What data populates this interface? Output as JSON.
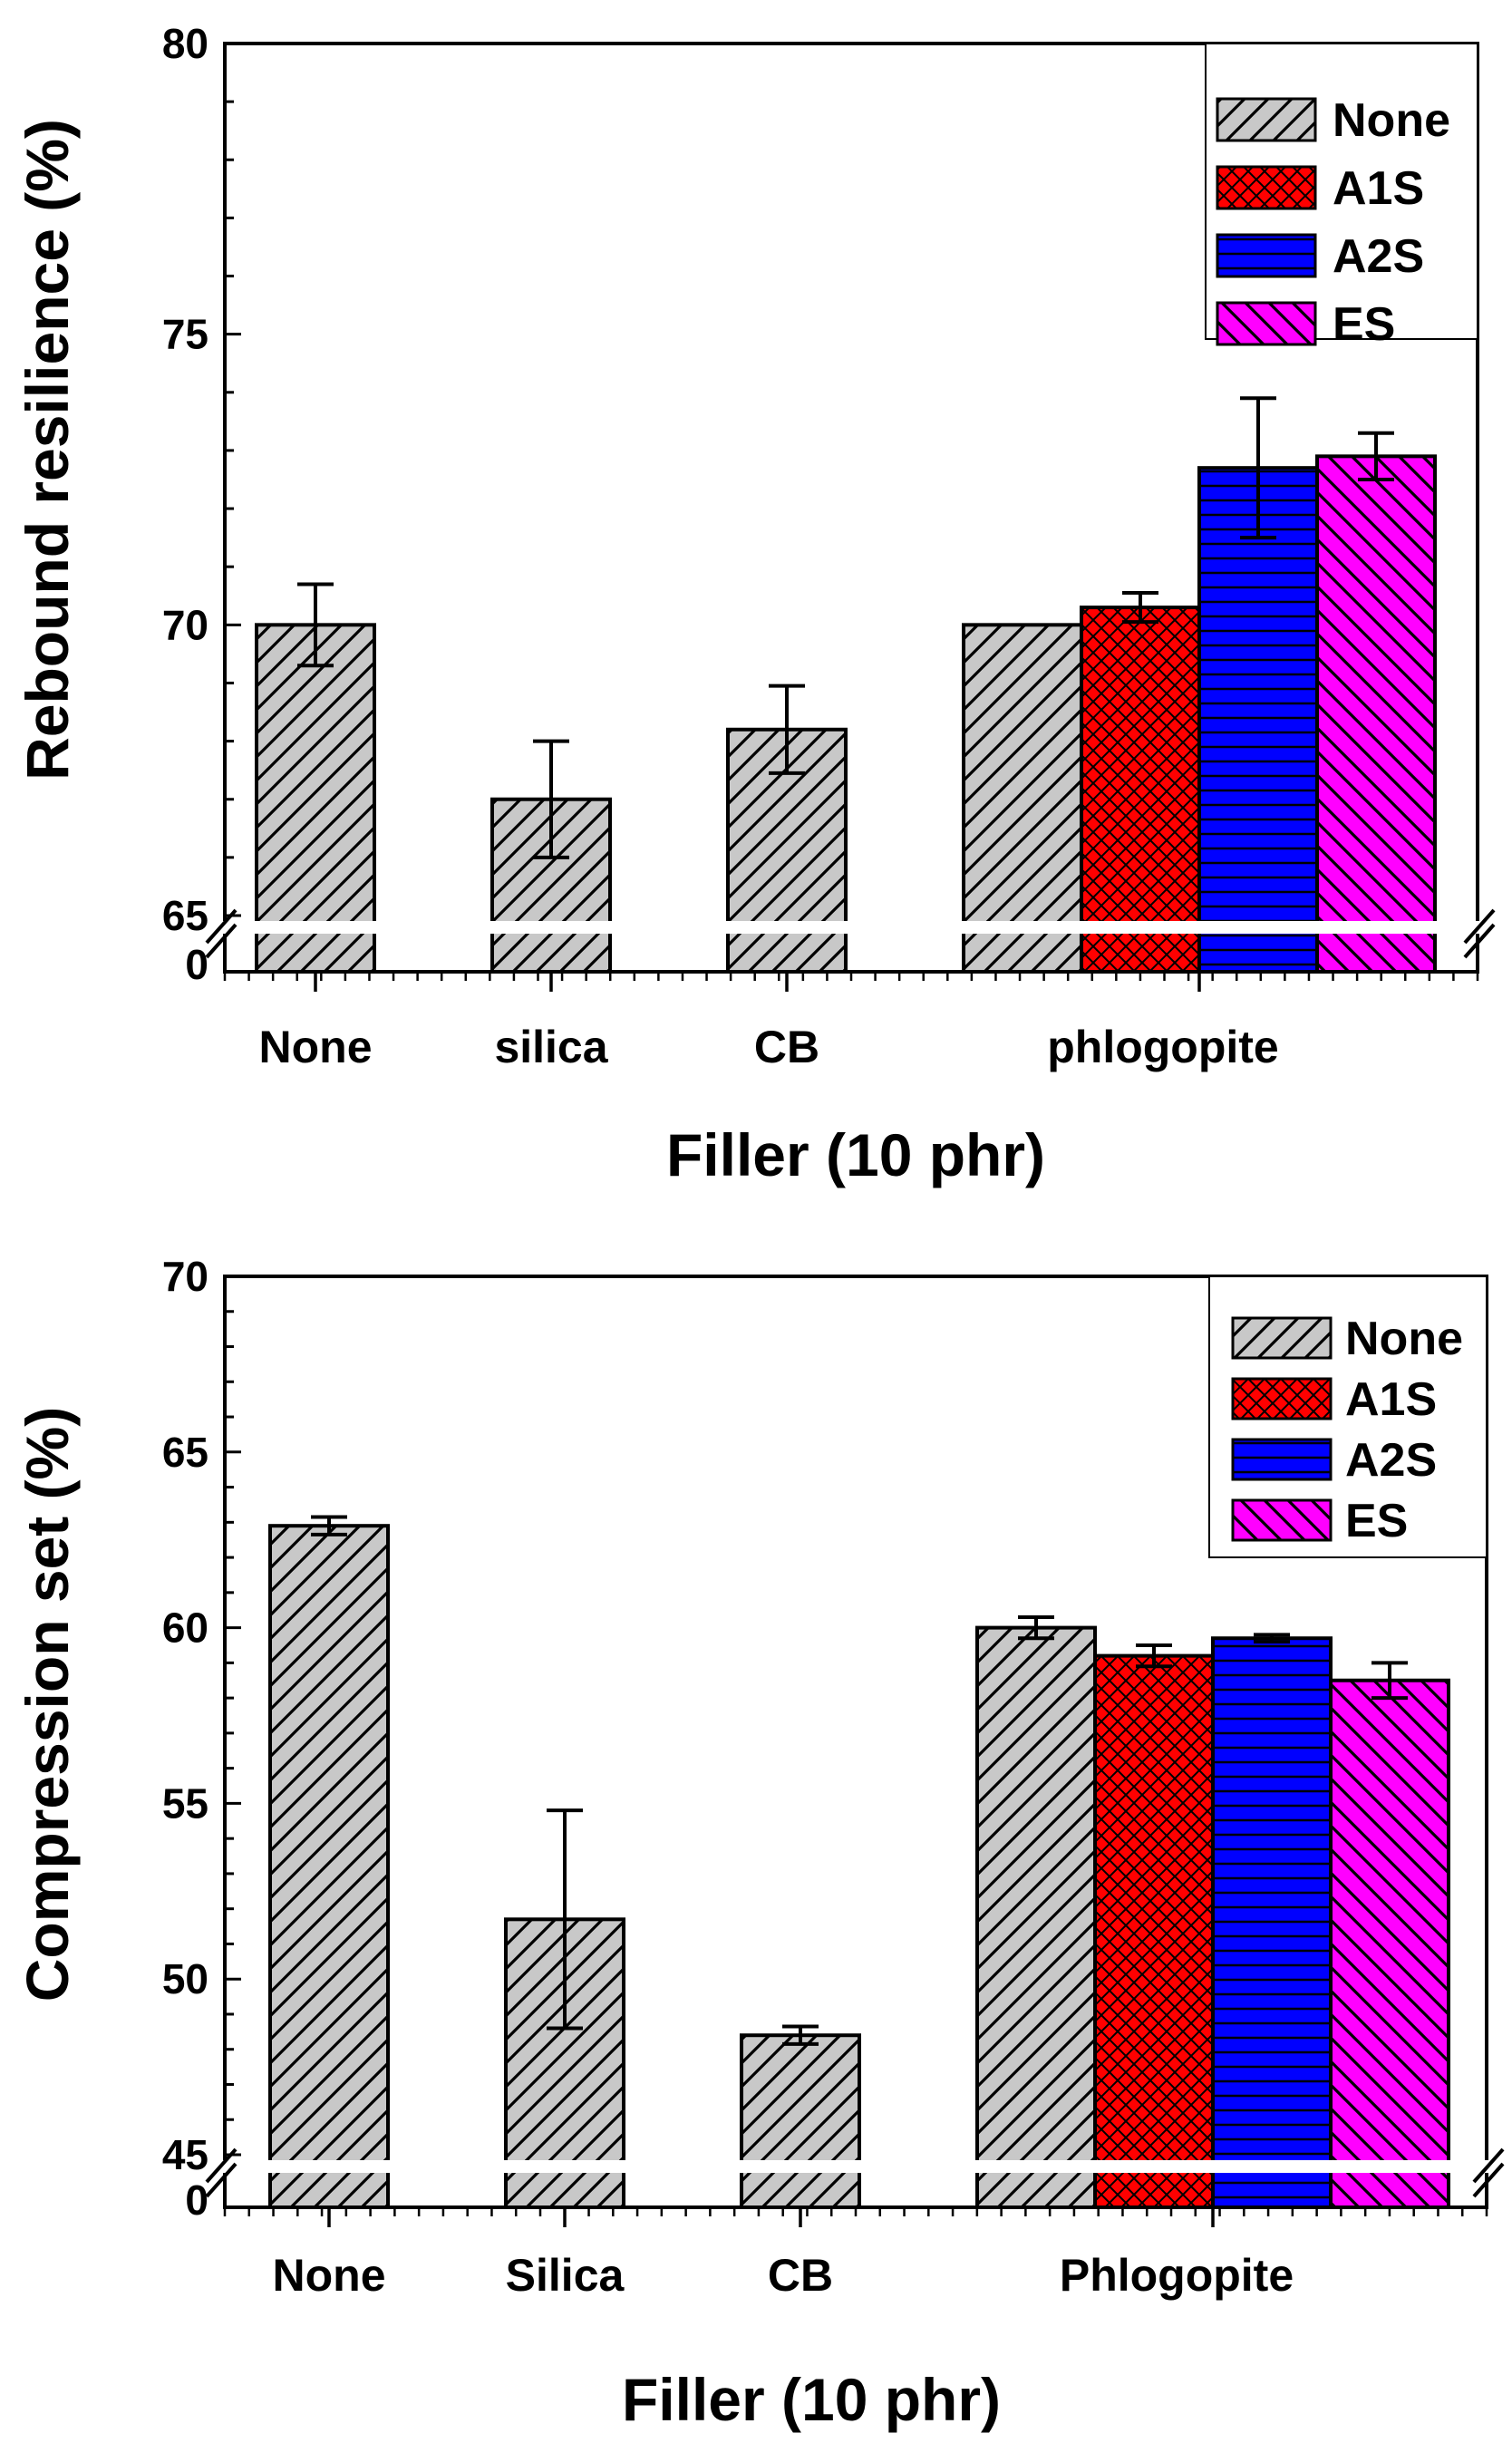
{
  "chart_data": [
    {
      "type": "bar",
      "xlabel": "Filler (10 phr)",
      "ylabel": "Rebound resilience (%)",
      "ylim": [
        65,
        80
      ],
      "axis_break": {
        "lower": 0,
        "upper": 65
      },
      "yticks": [
        "0",
        "65",
        "70",
        "75",
        "80"
      ],
      "legend": {
        "position": "top-right",
        "entries": [
          "None",
          "A1S",
          "A2S",
          "ES"
        ]
      },
      "categories": [
        "None",
        "silica",
        "CB",
        "phlogopite"
      ],
      "series": [
        {
          "name": "None",
          "fill": "#c8c8c8",
          "pattern": "diagonal",
          "values": [
            70.0,
            67.0,
            68.2,
            70.0
          ],
          "errors": [
            0.7,
            1.0,
            0.75,
            null
          ]
        },
        {
          "name": "A1S",
          "fill": "#ff0000",
          "pattern": "crosshatch",
          "values": [
            null,
            null,
            null,
            70.3
          ],
          "errors": [
            null,
            null,
            null,
            0.25
          ]
        },
        {
          "name": "A2S",
          "fill": "#0000ff",
          "pattern": "horizontal",
          "values": [
            null,
            null,
            null,
            72.7
          ],
          "errors": [
            null,
            null,
            null,
            1.2
          ]
        },
        {
          "name": "ES",
          "fill": "#ff00ff",
          "pattern": "backdiagonal",
          "values": [
            null,
            null,
            null,
            72.9
          ],
          "errors": [
            null,
            null,
            null,
            0.4
          ]
        }
      ]
    },
    {
      "type": "bar",
      "xlabel": "Filler (10 phr)",
      "ylabel": "Compression set (%)",
      "ylim": [
        45,
        70
      ],
      "axis_break": {
        "lower": 0,
        "upper": 45
      },
      "yticks": [
        "0",
        "45",
        "50",
        "55",
        "60",
        "65",
        "70"
      ],
      "legend": {
        "position": "top-right",
        "entries": [
          "None",
          "A1S",
          "A2S",
          "ES"
        ]
      },
      "categories": [
        "None",
        "Silica",
        "CB",
        "Phlogopite"
      ],
      "series": [
        {
          "name": "None",
          "fill": "#c8c8c8",
          "pattern": "diagonal",
          "values": [
            62.9,
            51.7,
            48.4,
            60.0
          ],
          "errors": [
            0.25,
            3.1,
            0.25,
            0.3
          ]
        },
        {
          "name": "A1S",
          "fill": "#ff0000",
          "pattern": "crosshatch",
          "values": [
            null,
            null,
            null,
            59.2
          ],
          "errors": [
            null,
            null,
            null,
            0.3
          ]
        },
        {
          "name": "A2S",
          "fill": "#0000ff",
          "pattern": "horizontal",
          "values": [
            null,
            null,
            null,
            59.7
          ],
          "errors": [
            null,
            null,
            null,
            0.1
          ]
        },
        {
          "name": "ES",
          "fill": "#ff00ff",
          "pattern": "backdiagonal",
          "values": [
            null,
            null,
            null,
            58.5
          ],
          "errors": [
            null,
            null,
            null,
            0.5
          ]
        }
      ]
    }
  ]
}
